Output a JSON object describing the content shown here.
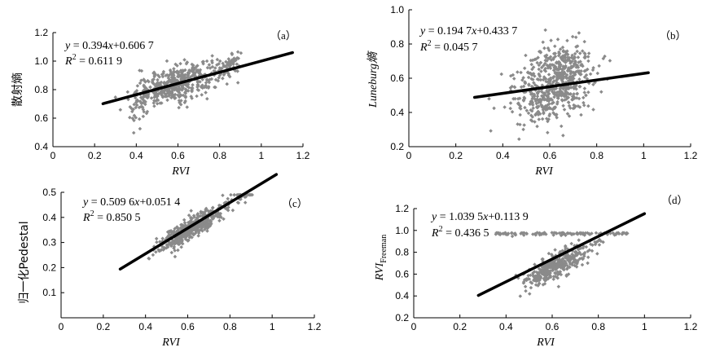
{
  "chart_data": [
    {
      "id": "a",
      "type": "scatter",
      "panel_label": "（a）",
      "xlabel": "RVI",
      "ylabel": "散射熵",
      "ylabel_italic": false,
      "xlim": [
        0,
        1.2
      ],
      "ylim": [
        0.4,
        1.2
      ],
      "xticks": [
        0,
        0.2,
        0.4,
        0.6,
        0.8,
        1,
        1.2
      ],
      "yticks": [
        0.4,
        0.6,
        0.8,
        1.0,
        1.2
      ],
      "xtick_labels": [
        "0",
        "0.2",
        "0.4",
        "0.6",
        "0.8",
        "1",
        "1.2"
      ],
      "ytick_labels": [
        "0.4",
        "0.6",
        "0.8",
        "1.0",
        "1.2"
      ],
      "equation": {
        "line1_a": "y",
        "line1_b": " = 0.394",
        "line1_c": "x",
        "line1_d": "+0.606 7",
        "r2_a": "R",
        "r2_b": "2",
        "r2_c": " = 0.611 9"
      },
      "fit": {
        "slope": 0.394,
        "intercept": 0.6067,
        "x_range": [
          0.24,
          1.15
        ]
      },
      "point_color": "#8a8a8a",
      "clusters": [
        {
          "x_center": 0.6,
          "x_spread": 0.16,
          "y_offset": 0.0,
          "y_spread": 0.06,
          "count": 420
        },
        {
          "x_center": 0.42,
          "x_spread": 0.05,
          "y_offset": -0.06,
          "y_spread": 0.09,
          "count": 60
        },
        {
          "x_center": 0.85,
          "x_spread": 0.05,
          "y_offset": 0.04,
          "y_spread": 0.04,
          "count": 60
        }
      ]
    },
    {
      "id": "b",
      "type": "scatter",
      "panel_label": "（b）",
      "xlabel": "RVI",
      "ylabel": "Luneburg熵",
      "ylabel_italic": true,
      "xlim": [
        0,
        1.2
      ],
      "ylim": [
        0.2,
        1.0
      ],
      "xticks": [
        0,
        0.2,
        0.4,
        0.6,
        0.8,
        1,
        1.2
      ],
      "yticks": [
        0.2,
        0.4,
        0.6,
        0.8,
        1.0
      ],
      "xtick_labels": [
        "0",
        "0.2",
        "0.4",
        "0.6",
        "0.8",
        "1",
        "1.2"
      ],
      "ytick_labels": [
        "0.2",
        "0.4",
        "0.6",
        "0.8",
        "1.0"
      ],
      "equation": {
        "line1_a": "y",
        "line1_b": " = 0.194 7",
        "line1_c": "x",
        "line1_d": "+0.433 7",
        "r2_a": "R",
        "r2_b": "2",
        "r2_c": " = 0.045 7"
      },
      "fit": {
        "slope": 0.1947,
        "intercept": 0.4337,
        "x_range": [
          0.28,
          1.02
        ]
      },
      "point_color": "#8a8a8a",
      "clusters": [
        {
          "x_center": 0.62,
          "x_spread": 0.14,
          "y_offset": 0.02,
          "y_spread": 0.1,
          "count": 480
        },
        {
          "x_center": 0.65,
          "x_spread": 0.1,
          "y_offset": 0.12,
          "y_spread": 0.06,
          "count": 80
        },
        {
          "x_center": 0.55,
          "x_spread": 0.1,
          "y_offset": -0.12,
          "y_spread": 0.05,
          "count": 60
        }
      ]
    },
    {
      "id": "c",
      "type": "scatter",
      "panel_label": "（c）",
      "xlabel": "RVI",
      "ylabel": "归一化Pedestal",
      "ylabel_italic": false,
      "xlim": [
        0,
        1.2
      ],
      "ylim": [
        0,
        0.5
      ],
      "xticks": [
        0,
        0.2,
        0.4,
        0.6,
        0.8,
        1,
        1.2
      ],
      "yticks": [
        0.1,
        0.2,
        0.3,
        0.4,
        0.5
      ],
      "xtick_labels": [
        "0",
        "0.2",
        "0.4",
        "0.6",
        "0.8",
        "1",
        "1.2"
      ],
      "ytick_labels": [
        "0.1",
        "0.2",
        "0.3",
        "0.4",
        "0.5"
      ],
      "equation": {
        "line1_a": "y",
        "line1_b": " = 0.509 6",
        "line1_c": "x",
        "line1_d": "+0.051 4",
        "r2_a": "R",
        "r2_b": "2",
        "r2_c": " = 0.850 5"
      },
      "fit": {
        "slope": 0.5096,
        "intercept": 0.0514,
        "x_range": [
          0.28,
          1.02
        ]
      },
      "point_color": "#8a8a8a",
      "clusters": [
        {
          "x_center": 0.62,
          "x_spread": 0.13,
          "y_offset": -0.01,
          "y_spread": 0.022,
          "count": 460
        },
        {
          "x_center": 0.85,
          "x_spread": 0.04,
          "y_offset": 0.01,
          "y_spread": 0.025,
          "count": 40
        }
      ]
    },
    {
      "id": "d",
      "type": "scatter",
      "panel_label": "（d）",
      "xlabel": "RVI",
      "ylabel": "RVI",
      "ylabel_sub": "Freeman",
      "ylabel_italic": true,
      "xlim": [
        0,
        1.2
      ],
      "ylim": [
        0.2,
        1.2
      ],
      "xticks": [
        0,
        0.2,
        0.4,
        0.6,
        0.8,
        1,
        1.2
      ],
      "yticks": [
        0.2,
        0.4,
        0.6,
        0.8,
        1.0,
        1.2
      ],
      "xtick_labels": [
        "0",
        "0.2",
        "0.4",
        "0.6",
        "0.8",
        "1",
        "1.2"
      ],
      "ytick_labels": [
        "0.2",
        "0.4",
        "0.6",
        "0.8",
        "1.0",
        "1.2"
      ],
      "equation": {
        "line1_a": "y",
        "line1_b": " = 1.039 5",
        "line1_c": "x",
        "line1_d": "+0.113 9",
        "r2_a": "R",
        "r2_b": "2",
        "r2_c": " = 0.436 5"
      },
      "fit": {
        "slope": 1.0395,
        "intercept": 0.1139,
        "x_range": [
          0.28,
          1.0
        ]
      },
      "point_color": "#8a8a8a",
      "saturation_cap": 0.98,
      "clusters": [
        {
          "x_center": 0.62,
          "x_spread": 0.12,
          "y_offset": -0.08,
          "y_spread": 0.06,
          "count": 380
        },
        {
          "x_center": 0.7,
          "x_spread": 0.12,
          "y_offset": 0.0,
          "y_spread": 0.0,
          "count": 120,
          "cap": true
        }
      ]
    }
  ]
}
